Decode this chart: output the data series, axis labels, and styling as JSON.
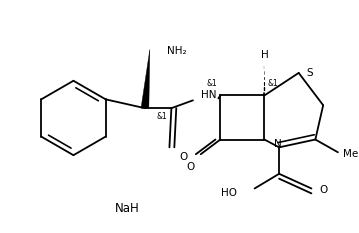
{
  "figsize": [
    3.59,
    2.33
  ],
  "dpi": 100,
  "bg_color": "#ffffff",
  "line_color": "#000000",
  "line_width": 1.3,
  "font_size": 7.5,
  "NaH_label": "NaH",
  "S_label": "S",
  "N_label": "N",
  "H_label": "H",
  "O_label": "O",
  "NH2_label": "NH₂",
  "HN_label": "HN",
  "HO_label": "HO",
  "Me_label": "Me",
  "and1_label": "&1"
}
